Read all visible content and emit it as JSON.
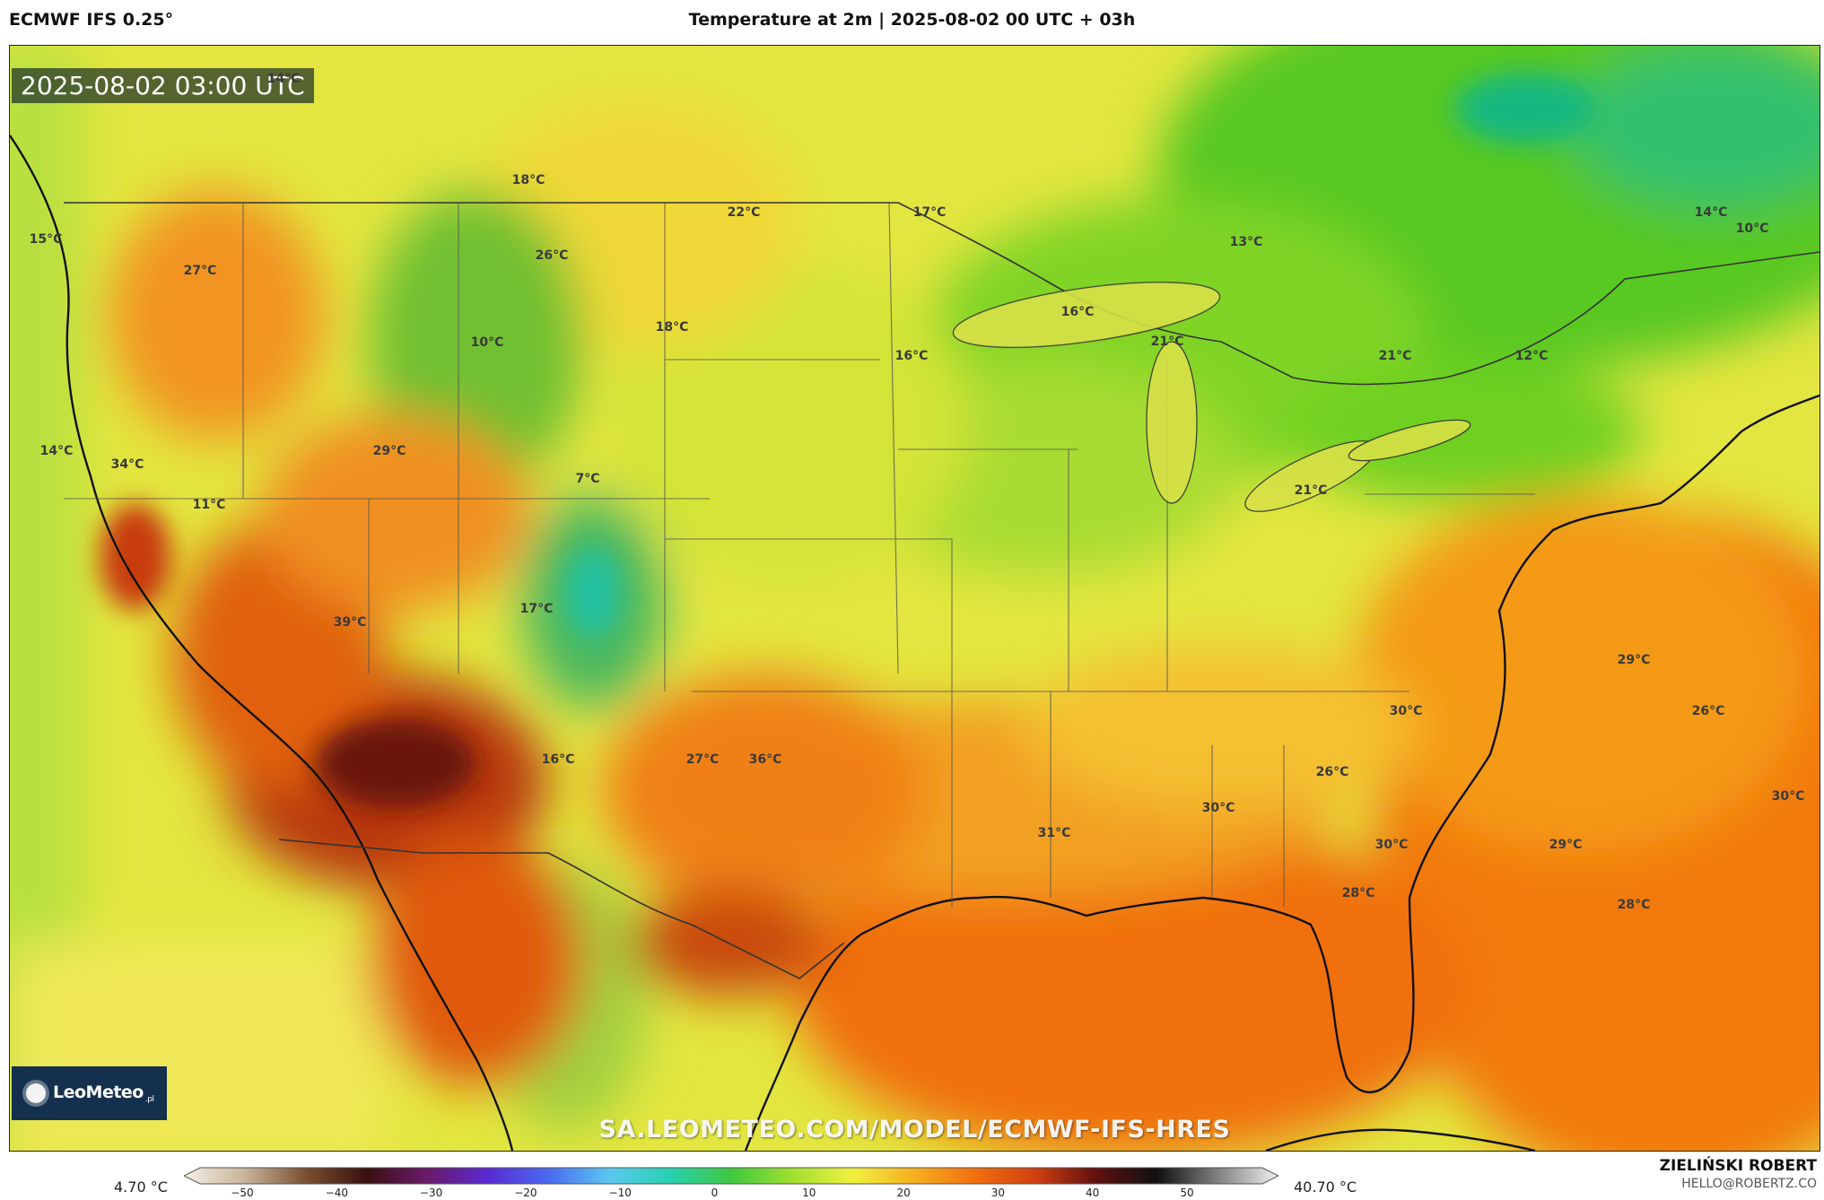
{
  "header": {
    "model": "ECMWF IFS 0.25°",
    "title": "Temperature at 2m | 2025-08-02 00 UTC + 03h"
  },
  "map": {
    "timestamp": "2025-08-02 03:00 UTC",
    "watermark_url": "SA.LEOMETEO.COM/MODEL/ECMWF-IFS-HRES",
    "logo": {
      "brand": "LeoMeteo",
      "suffix": ".pl"
    },
    "labels": [
      "14°C",
      "18°C",
      "15°C",
      "27°C",
      "22°C",
      "17°C",
      "26°C",
      "13°C",
      "14°C",
      "10°C",
      "16°C",
      "10°C",
      "18°C",
      "21°C",
      "16°C",
      "21°C",
      "12°C",
      "14°C",
      "34°C",
      "29°C",
      "7°C",
      "11°C",
      "21°C",
      "39°C",
      "17°C",
      "29°C",
      "30°C",
      "26°C",
      "16°C",
      "27°C",
      "36°C",
      "26°C",
      "30°C",
      "30°C",
      "31°C",
      "30°C",
      "29°C",
      "28°C",
      "28°C"
    ]
  },
  "colorbar": {
    "min_label": "4.70 °C",
    "max_label": "40.70 °C",
    "ticks": [
      "−50",
      "−40",
      "−30",
      "−20",
      "−10",
      "0",
      "10",
      "20",
      "30",
      "40",
      "50"
    ],
    "stops": [
      "#f5f0e6",
      "#c8b49a",
      "#7a5030",
      "#3a1010",
      "#6a1a6a",
      "#5a2ad0",
      "#4a6af0",
      "#5ac8f0",
      "#28d0b0",
      "#40c840",
      "#a0e030",
      "#f0f040",
      "#f5b020",
      "#f07010",
      "#d04010",
      "#601010",
      "#101010",
      "#808080",
      "#f0f0f0"
    ]
  },
  "author": {
    "name": "ZIELIŃSKI ROBERT",
    "email": "HELLO@ROBERTZ.CO"
  }
}
